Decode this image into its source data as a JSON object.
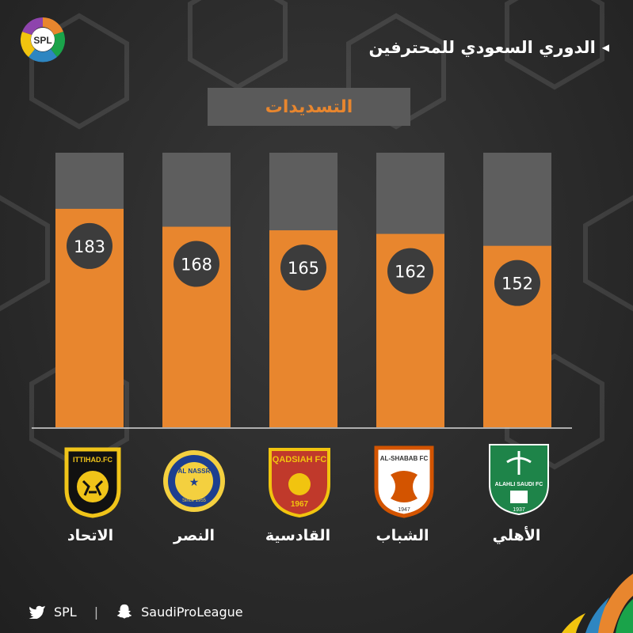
{
  "header": {
    "title": "الدوري السعودي للمحترفين",
    "logo_text": "SPL"
  },
  "chart_data": {
    "type": "bar",
    "title": "التسديدات",
    "categories": [
      "الاتحاد",
      "النصر",
      "القادسية",
      "الشباب",
      "الأهلي"
    ],
    "values": [
      183,
      168,
      165,
      162,
      152
    ],
    "value_labels": [
      "183",
      "168",
      "165",
      "162",
      "152"
    ],
    "ylim": [
      0,
      230
    ],
    "grid": false,
    "bar_color": "#e8862e",
    "track_color": "#5e5e5e",
    "label_circle_color": "#3c3c3c"
  },
  "crests": [
    {
      "name": "ittihad",
      "text": "ITTIHAD.FC",
      "colors": [
        "#f0c419",
        "#111111"
      ]
    },
    {
      "name": "nassr",
      "text": "AL NASSR",
      "year": "Since 1955",
      "colors": [
        "#f4d03f",
        "#1d3f8f"
      ]
    },
    {
      "name": "qadsiah",
      "text": "QADSIAH FC",
      "year": "1967",
      "colors": [
        "#c0392b",
        "#f1c40f"
      ]
    },
    {
      "name": "shabab",
      "text": "AL-SHABAB FC",
      "year": "1947",
      "colors": [
        "#ffffff",
        "#d35400"
      ]
    },
    {
      "name": "ahli",
      "text": "ALAHLI SAUDI FC",
      "year": "1937",
      "colors": [
        "#1e8449",
        "#ffffff"
      ]
    }
  ],
  "footer": {
    "twitter": "SPL",
    "snapchat": "SaudiProLeague"
  }
}
